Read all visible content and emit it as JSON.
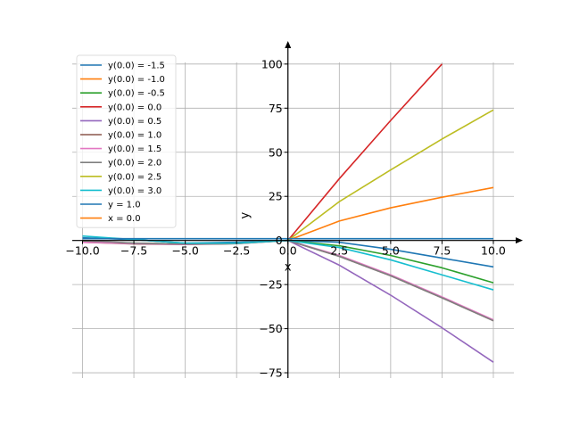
{
  "chart_data": {
    "type": "line",
    "title": "",
    "xlabel": "x",
    "ylabel": "y",
    "xlim": [
      -10.5,
      11.0
    ],
    "ylim": [
      -78,
      108
    ],
    "grid": true,
    "legend_position": "top-left",
    "x_ticks": [
      {
        "value": -10,
        "label": "−10.0"
      },
      {
        "value": -7.5,
        "label": "−7.5"
      },
      {
        "value": -5,
        "label": "−5.0"
      },
      {
        "value": -2.5,
        "label": "−2.5"
      },
      {
        "value": 0,
        "label": "0.0"
      },
      {
        "value": 2.5,
        "label": "2.5"
      },
      {
        "value": 5,
        "label": "5.0"
      },
      {
        "value": 7.5,
        "label": "7.5"
      },
      {
        "value": 10,
        "label": "10.0"
      }
    ],
    "y_ticks": [
      {
        "value": -75,
        "label": "−75"
      },
      {
        "value": -50,
        "label": "−50"
      },
      {
        "value": -25,
        "label": "−25"
      },
      {
        "value": 0,
        "label": "0"
      },
      {
        "value": 25,
        "label": "25"
      },
      {
        "value": 50,
        "label": "50"
      },
      {
        "value": 75,
        "label": "75"
      },
      {
        "value": 100,
        "label": "100"
      }
    ],
    "series": [
      {
        "name": "y(0.0) = -1.5",
        "color": "#1f77b4",
        "x": [
          -10,
          -7.5,
          -5,
          -2.5,
          0,
          2.5,
          5,
          7.5,
          10
        ],
        "y": [
          1.5,
          0.5,
          -1.5,
          -1.0,
          0,
          -1.0,
          -5.0,
          -10.0,
          -15.0
        ]
      },
      {
        "name": "y(0.0) = -1.0",
        "color": "#ff7f0e",
        "x": [
          0,
          2.5,
          5,
          7.5,
          10
        ],
        "y": [
          0,
          11.0,
          18.5,
          24.5,
          30.0
        ]
      },
      {
        "name": "y(0.0) = -0.5",
        "color": "#2ca02c",
        "x": [
          -10,
          -7.5,
          -5,
          -2.5,
          0,
          2.5,
          5,
          7.5,
          10
        ],
        "y": [
          -0.5,
          -1.5,
          -2.0,
          -1.5,
          0,
          -3.0,
          -8.5,
          -15.5,
          -24.0
        ]
      },
      {
        "name": "y(0.0) = 0.0",
        "color": "#d62728",
        "x": [
          0,
          2.5,
          5,
          7.5
        ],
        "y": [
          0,
          35.0,
          68.0,
          100.0
        ]
      },
      {
        "name": "y(0.0) = 0.5",
        "color": "#9467bd",
        "x": [
          0,
          2.5,
          5,
          7.5,
          10
        ],
        "y": [
          0,
          -14.0,
          -31.0,
          -49.5,
          -69.0
        ]
      },
      {
        "name": "y(0.0) = 1.0",
        "color": "#8c564b",
        "x": [
          -10,
          -7.5,
          -5,
          -2.5,
          0,
          2.5,
          5,
          7.5,
          10
        ],
        "y": [
          -1.0,
          -2.0,
          -2.3,
          -1.8,
          0,
          -9.0,
          -20.0,
          -32.5,
          -45.5
        ]
      },
      {
        "name": "y(0.0) = 1.5",
        "color": "#e377c2",
        "x": [
          -10,
          -7.5,
          -5,
          -2.5,
          0,
          2.5,
          5,
          7.5,
          10
        ],
        "y": [
          -1.0,
          -1.8,
          -2.2,
          -1.6,
          0,
          -8.5,
          -19.5,
          -32.0,
          -45.0
        ]
      },
      {
        "name": "y(0.0) = 2.0",
        "color": "#7f7f7f",
        "x": [
          -10,
          -7.5,
          -5,
          -2.5,
          0,
          2.5,
          5,
          7.5,
          10
        ],
        "y": [
          0,
          -1.5,
          -2.0,
          -1.8,
          0,
          -9.0,
          -20.0,
          -32.5,
          -45.5
        ]
      },
      {
        "name": "y(0.0) = 2.5",
        "color": "#bcbd22",
        "x": [
          0,
          2.5,
          5,
          7.5,
          10
        ],
        "y": [
          0,
          22.0,
          40.0,
          57.5,
          74.0
        ]
      },
      {
        "name": "y(0.0) = 3.0",
        "color": "#17becf",
        "x": [
          -10,
          -7.5,
          -5,
          -2.5,
          0,
          2.5,
          5,
          7.5,
          10
        ],
        "y": [
          2.5,
          0.5,
          -1.5,
          -1.5,
          0,
          -4.0,
          -11.0,
          -19.5,
          -28.0
        ]
      },
      {
        "name": "y = 1.0",
        "color": "#1f77b4",
        "x": [
          -10,
          10
        ],
        "y": [
          1.0,
          1.0
        ]
      },
      {
        "name": "x = 0.0",
        "color": "#ff7f0e",
        "x": [
          0,
          0
        ],
        "y": [
          0,
          0
        ]
      }
    ]
  }
}
